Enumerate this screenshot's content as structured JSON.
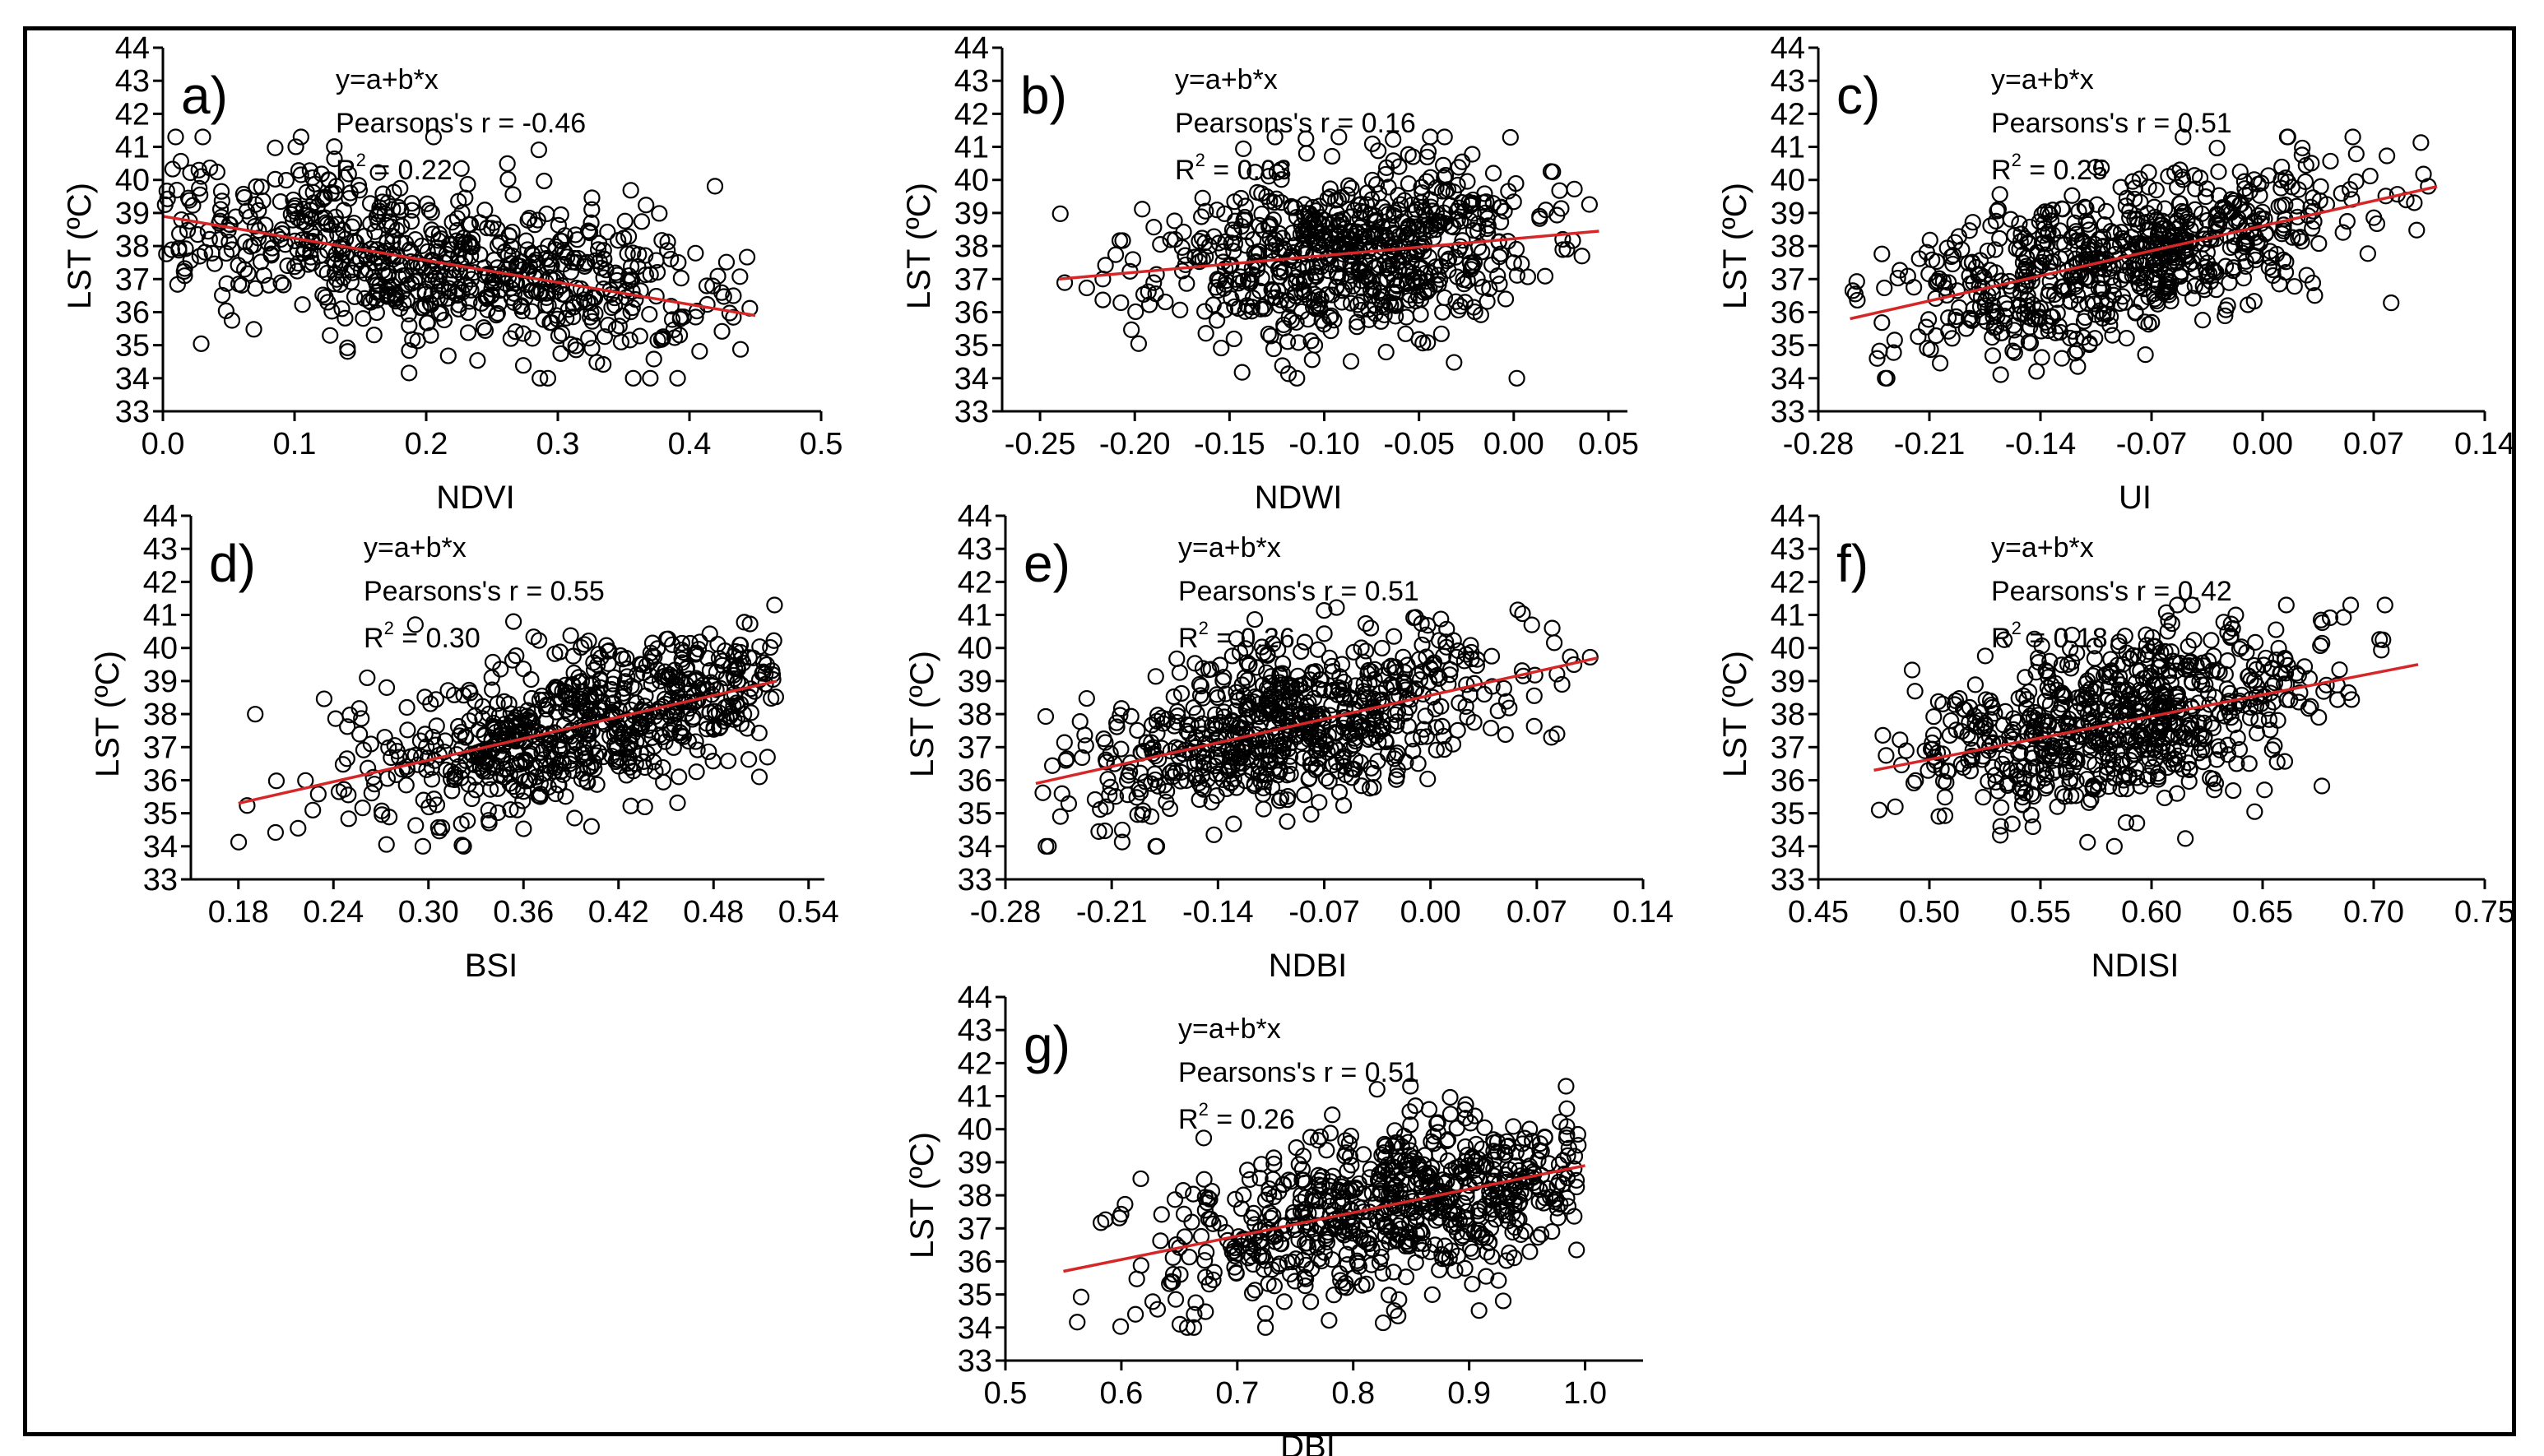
{
  "figure": {
    "description_colors": {
      "points": "#000000",
      "fit_line": "#d62728",
      "frame": "#000000"
    },
    "panels": [
      {
        "id": "a",
        "letter": "a)",
        "xlabel": "NDVI",
        "ylabel": "LST (ºC)",
        "xlim": [
          0.0,
          0.5
        ],
        "xticks": [
          0.0,
          0.1,
          0.2,
          0.3,
          0.4,
          0.5
        ],
        "xtick_labels": [
          "0.0",
          "0.1",
          "0.2",
          "0.3",
          "0.4",
          "0.5"
        ],
        "ylim": [
          33,
          44
        ],
        "yticks": [
          33,
          34,
          35,
          36,
          37,
          38,
          39,
          40,
          41,
          42,
          43,
          44
        ],
        "eq": "y=a+b*x",
        "pearson": "Pearsons's r = -0.46",
        "r2": "R",
        "r2_sup": "2",
        "r2_value": " = 0.22",
        "fit": {
          "x": [
            0.0,
            0.45
          ],
          "y": [
            38.9,
            35.9
          ]
        },
        "cloud": {
          "x_center": 0.2,
          "x_spread": 0.12,
          "x_min": 0.0,
          "x_max": 0.45,
          "y_noise": 1.2,
          "n": 700,
          "seed": 11
        }
      },
      {
        "id": "b",
        "letter": "b)",
        "xlabel": "NDWI",
        "ylabel": "LST (ºC)",
        "xlim": [
          -0.27,
          0.06
        ],
        "xticks": [
          -0.25,
          -0.2,
          -0.15,
          -0.1,
          -0.05,
          0.0,
          0.05
        ],
        "xtick_labels": [
          "-0.25",
          "-0.20",
          "-0.15",
          "-0.10",
          "-0.05",
          "0.00",
          "0.05"
        ],
        "ylim": [
          33,
          44
        ],
        "yticks": [
          33,
          34,
          35,
          36,
          37,
          38,
          39,
          40,
          41,
          42,
          43,
          44
        ],
        "eq": "y=a+b*x",
        "pearson": "Pearsons's r = 0.16",
        "r2": "R",
        "r2_sup": "2",
        "r2_value": " = 0.03",
        "fit": {
          "x": [
            -0.24,
            0.045
          ],
          "y": [
            37.0,
            38.45
          ]
        },
        "cloud": {
          "x_center": -0.09,
          "x_spread": 0.05,
          "x_min": -0.24,
          "x_max": 0.045,
          "y_noise": 1.3,
          "n": 700,
          "seed": 23
        }
      },
      {
        "id": "c",
        "letter": "c)",
        "xlabel": "UI",
        "ylabel": "LST (ºC)",
        "xlim": [
          -0.28,
          0.14
        ],
        "xticks": [
          -0.28,
          -0.21,
          -0.14,
          -0.07,
          0.0,
          0.07,
          0.14
        ],
        "xtick_labels": [
          "-0.28",
          "-0.21",
          "-0.14",
          "-0.07",
          "0.00",
          "0.07",
          "0.14"
        ],
        "ylim": [
          33,
          44
        ],
        "yticks": [
          33,
          34,
          35,
          36,
          37,
          38,
          39,
          40,
          41,
          42,
          43,
          44
        ],
        "eq": "y=a+b*x",
        "pearson": "Pearsons's r = 0.51",
        "r2": "R",
        "r2_sup": "2",
        "r2_value": " = 0.25",
        "fit": {
          "x": [
            -0.26,
            0.11
          ],
          "y": [
            35.8,
            39.8
          ]
        },
        "cloud": {
          "x_center": -0.09,
          "x_spread": 0.07,
          "x_min": -0.26,
          "x_max": 0.11,
          "y_noise": 1.2,
          "n": 700,
          "seed": 37
        }
      },
      {
        "id": "d",
        "letter": "d)",
        "xlabel": "BSI",
        "ylabel": "LST (ºC)",
        "xlim": [
          0.15,
          0.55
        ],
        "xticks": [
          0.18,
          0.24,
          0.3,
          0.36,
          0.42,
          0.48,
          0.54
        ],
        "xtick_labels": [
          "0.18",
          "0.24",
          "0.30",
          "0.36",
          "0.42",
          "0.48",
          "0.54"
        ],
        "ylim": [
          33,
          44
        ],
        "yticks": [
          33,
          34,
          35,
          36,
          37,
          38,
          39,
          40,
          41,
          42,
          43,
          44
        ],
        "eq": "y=a+b*x",
        "pearson": "Pearsons's r = 0.55",
        "r2": "R",
        "r2_sup": "2",
        "r2_value": " = 0.30",
        "fit": {
          "x": [
            0.18,
            0.52
          ],
          "y": [
            35.3,
            39.0
          ]
        },
        "cloud": {
          "x_center": 0.41,
          "x_spread": 0.07,
          "x_min": 0.18,
          "x_max": 0.52,
          "y_noise": 1.2,
          "n": 700,
          "seed": 41
        }
      },
      {
        "id": "e",
        "letter": "e)",
        "xlabel": "NDBI",
        "ylabel": "LST (ºC)",
        "xlim": [
          -0.28,
          0.14
        ],
        "xticks": [
          -0.28,
          -0.21,
          -0.14,
          -0.07,
          0.0,
          0.07,
          0.14
        ],
        "xtick_labels": [
          "-0.28",
          "-0.21",
          "-0.14",
          "-0.07",
          "0.00",
          "0.07",
          "0.14"
        ],
        "ylim": [
          33,
          44
        ],
        "yticks": [
          33,
          34,
          35,
          36,
          37,
          38,
          39,
          40,
          41,
          42,
          43,
          44
        ],
        "eq": "y=a+b*x",
        "pearson": "Pearsons's r = 0.51",
        "r2": "R",
        "r2_sup": "2",
        "r2_value": " = 0.26",
        "fit": {
          "x": [
            -0.26,
            0.11
          ],
          "y": [
            35.9,
            39.7
          ]
        },
        "cloud": {
          "x_center": -0.09,
          "x_spread": 0.07,
          "x_min": -0.26,
          "x_max": 0.11,
          "y_noise": 1.2,
          "n": 700,
          "seed": 53
        }
      },
      {
        "id": "f",
        "letter": "f)",
        "xlabel": "NDISI",
        "ylabel": "LST (ºC)",
        "xlim": [
          0.45,
          0.75
        ],
        "xticks": [
          0.45,
          0.5,
          0.55,
          0.6,
          0.65,
          0.7,
          0.75
        ],
        "xtick_labels": [
          "0.45",
          "0.50",
          "0.55",
          "0.60",
          "0.65",
          "0.70",
          "0.75"
        ],
        "ylim": [
          33,
          44
        ],
        "yticks": [
          33,
          34,
          35,
          36,
          37,
          38,
          39,
          40,
          41,
          42,
          43,
          44
        ],
        "eq": "y=a+b*x",
        "pearson": "Pearsons's r = 0.42",
        "r2": "R",
        "r2_sup": "2",
        "r2_value": " = 0.18",
        "fit": {
          "x": [
            0.475,
            0.72
          ],
          "y": [
            36.3,
            39.5
          ]
        },
        "cloud": {
          "x_center": 0.585,
          "x_spread": 0.045,
          "x_min": 0.475,
          "x_max": 0.72,
          "y_noise": 1.2,
          "n": 700,
          "seed": 67
        }
      },
      {
        "id": "g",
        "letter": "g)",
        "xlabel": "DBI",
        "ylabel": "LST (ºC)",
        "xlim": [
          0.5,
          1.05
        ],
        "xticks": [
          0.5,
          0.6,
          0.7,
          0.8,
          0.9,
          1.0
        ],
        "xtick_labels": [
          "0.5",
          "0.6",
          "0.7",
          "0.8",
          "0.9",
          "1.0"
        ],
        "ylim": [
          33,
          44
        ],
        "yticks": [
          33,
          34,
          35,
          36,
          37,
          38,
          39,
          40,
          41,
          42,
          43,
          44
        ],
        "eq": "y=a+b*x",
        "pearson": "Pearsons's r = 0.51",
        "r2": "R",
        "r2_sup": "2",
        "r2_value": " = 0.26",
        "fit": {
          "x": [
            0.55,
            1.0
          ],
          "y": [
            35.7,
            38.9
          ]
        },
        "cloud": {
          "x_center": 0.85,
          "x_spread": 0.1,
          "x_min": 0.55,
          "x_max": 0.995,
          "y_noise": 1.2,
          "n": 700,
          "seed": 79
        }
      }
    ]
  },
  "chart_data": [
    {
      "type": "scatter",
      "title": "a)",
      "xlabel": "NDVI",
      "ylabel": "LST (ºC)",
      "xlim": [
        0.0,
        0.5
      ],
      "ylim": [
        33,
        44
      ],
      "annotations": [
        "y=a+b*x",
        "Pearsons's r = -0.46",
        "R2 = 0.22"
      ],
      "series": [
        {
          "name": "fit",
          "x": [
            0.0,
            0.45
          ],
          "y": [
            38.9,
            35.9
          ]
        }
      ]
    },
    {
      "type": "scatter",
      "title": "b)",
      "xlabel": "NDWI",
      "ylabel": "LST (ºC)",
      "xlim": [
        -0.27,
        0.06
      ],
      "ylim": [
        33,
        44
      ],
      "annotations": [
        "y=a+b*x",
        "Pearsons's r = 0.16",
        "R2 = 0.03"
      ],
      "series": [
        {
          "name": "fit",
          "x": [
            -0.24,
            0.045
          ],
          "y": [
            37.0,
            38.45
          ]
        }
      ]
    },
    {
      "type": "scatter",
      "title": "c)",
      "xlabel": "UI",
      "ylabel": "LST (ºC)",
      "xlim": [
        -0.28,
        0.14
      ],
      "ylim": [
        33,
        44
      ],
      "annotations": [
        "y=a+b*x",
        "Pearsons's r = 0.51",
        "R2 = 0.25"
      ],
      "series": [
        {
          "name": "fit",
          "x": [
            -0.26,
            0.11
          ],
          "y": [
            35.8,
            39.8
          ]
        }
      ]
    },
    {
      "type": "scatter",
      "title": "d)",
      "xlabel": "BSI",
      "ylabel": "LST (ºC)",
      "xlim": [
        0.15,
        0.55
      ],
      "ylim": [
        33,
        44
      ],
      "annotations": [
        "y=a+b*x",
        "Pearsons's r = 0.55",
        "R2 = 0.30"
      ],
      "series": [
        {
          "name": "fit",
          "x": [
            0.18,
            0.52
          ],
          "y": [
            35.3,
            39.0
          ]
        }
      ]
    },
    {
      "type": "scatter",
      "title": "e)",
      "xlabel": "NDBI",
      "ylabel": "LST (ºC)",
      "xlim": [
        -0.28,
        0.14
      ],
      "ylim": [
        33,
        44
      ],
      "annotations": [
        "y=a+b*x",
        "Pearsons's r = 0.51",
        "R2 = 0.26"
      ],
      "series": [
        {
          "name": "fit",
          "x": [
            -0.26,
            0.11
          ],
          "y": [
            35.9,
            39.7
          ]
        }
      ]
    },
    {
      "type": "scatter",
      "title": "f)",
      "xlabel": "NDISI",
      "ylabel": "LST (ºC)",
      "xlim": [
        0.45,
        0.75
      ],
      "ylim": [
        33,
        44
      ],
      "annotations": [
        "y=a+b*x",
        "Pearsons's r = 0.42",
        "R2 = 0.18"
      ],
      "series": [
        {
          "name": "fit",
          "x": [
            0.475,
            0.72
          ],
          "y": [
            36.3,
            39.5
          ]
        }
      ]
    },
    {
      "type": "scatter",
      "title": "g)",
      "xlabel": "DBI",
      "ylabel": "LST (ºC)",
      "xlim": [
        0.5,
        1.05
      ],
      "ylim": [
        33,
        44
      ],
      "annotations": [
        "y=a+b*x",
        "Pearsons's r = 0.51",
        "R2 = 0.26"
      ],
      "series": [
        {
          "name": "fit",
          "x": [
            0.55,
            1.0
          ],
          "y": [
            35.7,
            38.9
          ]
        }
      ]
    }
  ]
}
